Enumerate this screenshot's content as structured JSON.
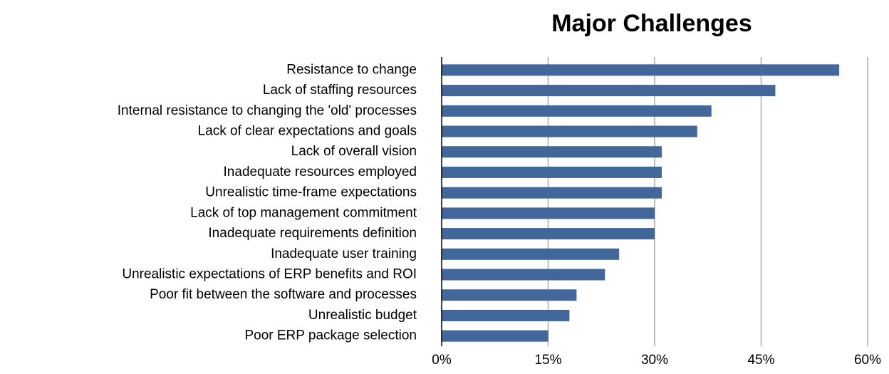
{
  "chart_data": {
    "type": "barh",
    "title": "Major Challenges",
    "categories": [
      "Resistance to change",
      "Lack of staffing resources",
      "Internal resistance to changing the 'old' processes",
      "Lack of clear expectations and goals",
      "Lack of overall vision",
      "Inadequate resources employed",
      "Unrealistic time-frame expectations",
      "Lack of top management commitment",
      "Inadequate requirements definition",
      "Inadequate user training",
      "Unrealistic expectations of ERP benefits and ROI",
      "Poor fit between the software and processes",
      "Unrealistic budget",
      "Poor ERP package selection"
    ],
    "values": [
      56,
      47,
      38,
      36,
      31,
      31,
      31,
      30,
      30,
      25,
      23,
      19,
      18,
      15
    ],
    "color": "#41679b",
    "xlim": [
      0,
      60
    ],
    "xticks": [
      {
        "value": 0,
        "label": "0%"
      },
      {
        "value": 15,
        "label": "15%"
      },
      {
        "value": 30,
        "label": "30%"
      },
      {
        "value": 45,
        "label": "45%"
      },
      {
        "value": 60,
        "label": "60%"
      }
    ],
    "grid": true
  }
}
